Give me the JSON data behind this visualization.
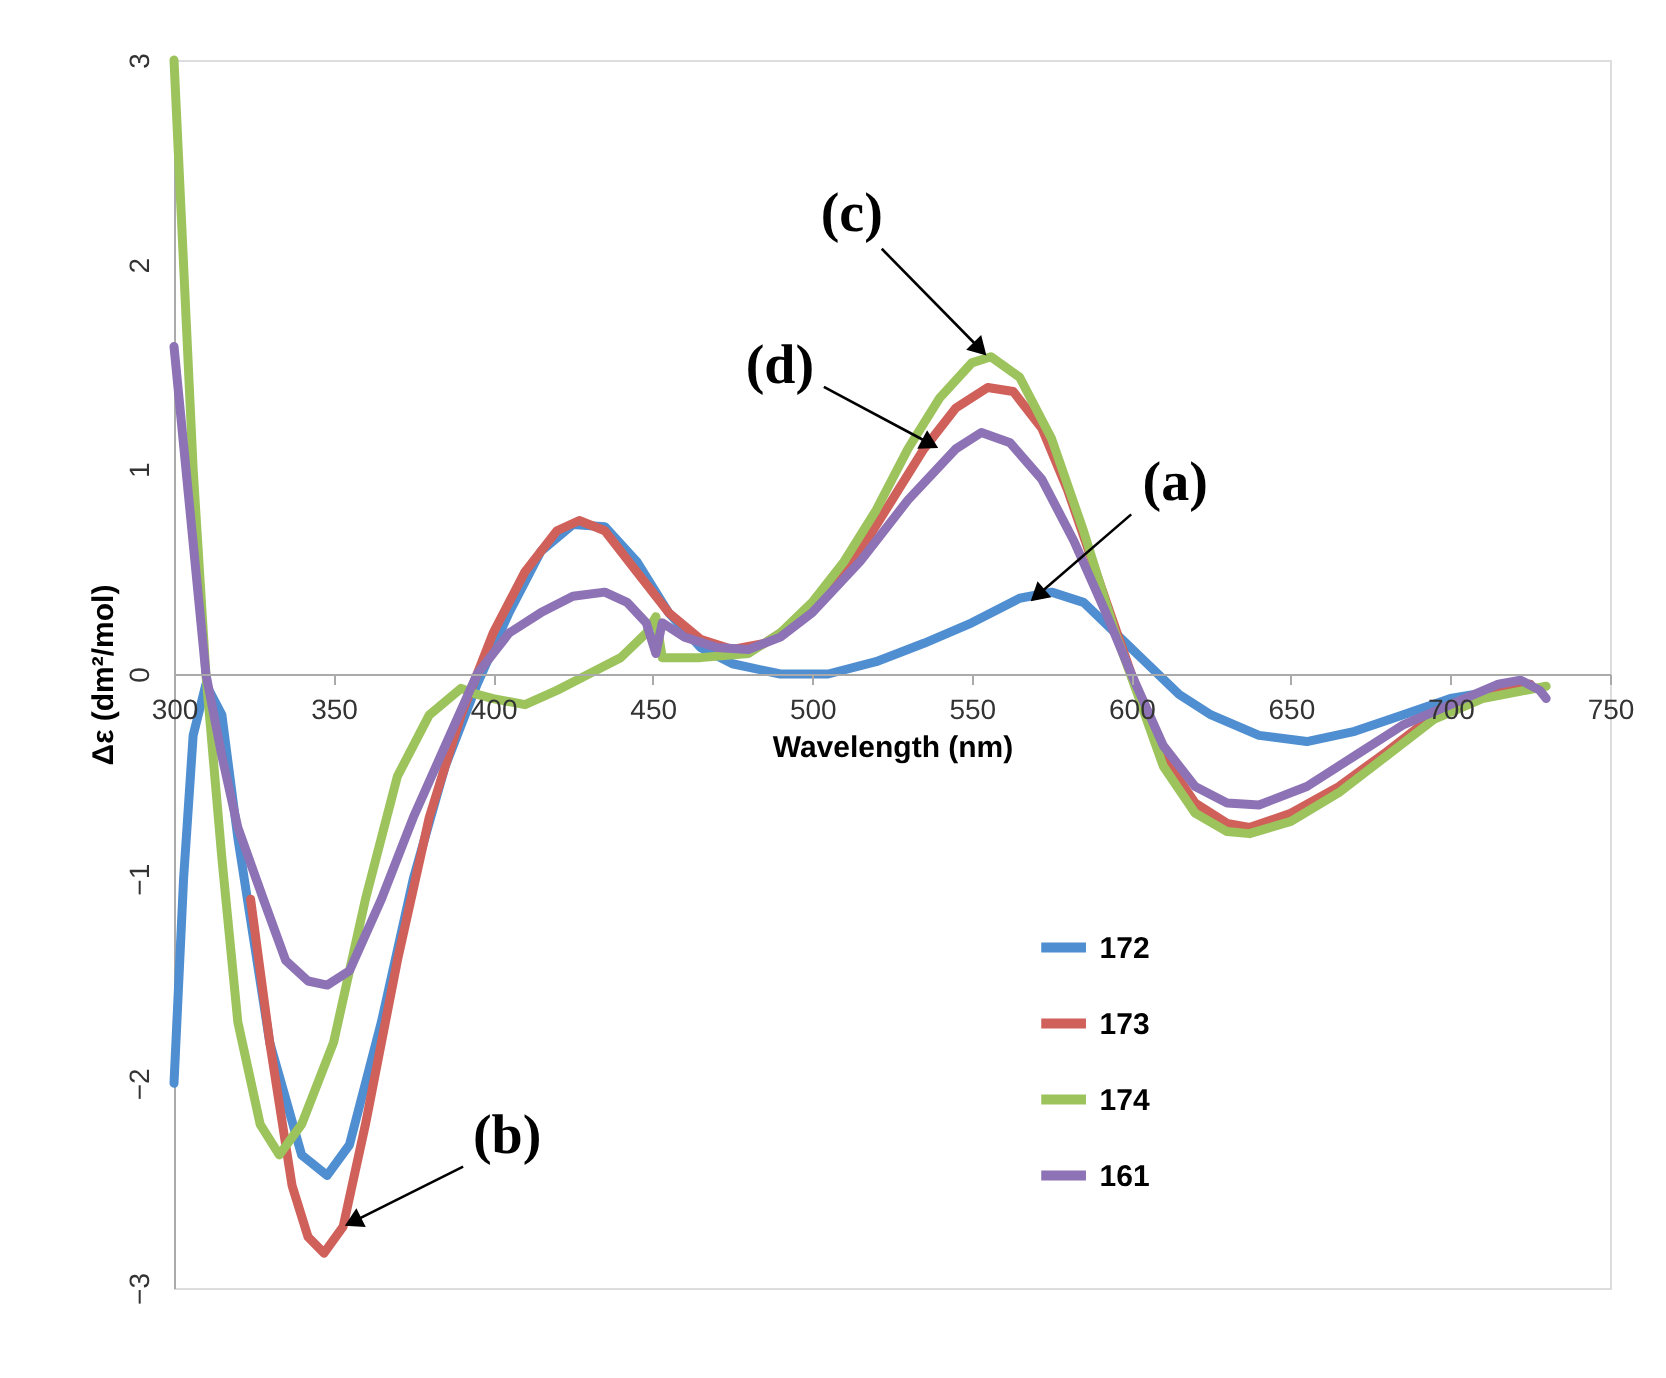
{
  "chart_data": {
    "type": "line",
    "xlabel": "Wavelength (nm)",
    "ylabel": "Δε (dm²/mol)",
    "xlim": [
      300,
      750
    ],
    "xticks": [
      300,
      350,
      400,
      450,
      500,
      550,
      600,
      650,
      700,
      750
    ],
    "ylim": [
      -3,
      3
    ],
    "yticks": [
      -3,
      -2,
      -1,
      0,
      1,
      2,
      3
    ],
    "grid": false,
    "legend": "bottom right",
    "marker": "none",
    "line_style": "solid",
    "series": [
      {
        "name": "172",
        "color": "#4f8ed0",
        "x": [
          300,
          303,
          306,
          310,
          315,
          320,
          330,
          340,
          348,
          355,
          365,
          375,
          385,
          395,
          405,
          415,
          425,
          435,
          445,
          455,
          465,
          475,
          490,
          505,
          520,
          535,
          550,
          565,
          575,
          585,
          595,
          605,
          615,
          625,
          640,
          655,
          670,
          685,
          700,
          715,
          725
        ],
        "values": [
          -2.0,
          -1.0,
          -0.3,
          -0.05,
          -0.2,
          -0.8,
          -1.8,
          -2.35,
          -2.45,
          -2.3,
          -1.7,
          -1.0,
          -0.45,
          -0.05,
          0.3,
          0.6,
          0.73,
          0.72,
          0.55,
          0.3,
          0.13,
          0.05,
          0.0,
          0.0,
          0.06,
          0.15,
          0.25,
          0.37,
          0.4,
          0.35,
          0.2,
          0.05,
          -0.1,
          -0.2,
          -0.3,
          -0.33,
          -0.28,
          -0.2,
          -0.12,
          -0.08,
          -0.05
        ]
      },
      {
        "name": "173",
        "color": "#d0605a",
        "x": [
          324,
          330,
          337,
          342,
          347,
          353,
          360,
          370,
          380,
          390,
          400,
          410,
          420,
          427,
          435,
          445,
          455,
          465,
          475,
          485,
          495,
          505,
          515,
          525,
          535,
          545,
          555,
          563,
          572,
          580,
          590,
          600,
          610,
          620,
          630,
          637,
          650,
          665,
          680,
          695,
          710,
          725
        ],
        "values": [
          -1.1,
          -1.8,
          -2.5,
          -2.75,
          -2.83,
          -2.7,
          -2.2,
          -1.4,
          -0.7,
          -0.2,
          0.2,
          0.5,
          0.7,
          0.75,
          0.7,
          0.5,
          0.3,
          0.17,
          0.12,
          0.15,
          0.25,
          0.4,
          0.6,
          0.85,
          1.1,
          1.3,
          1.4,
          1.38,
          1.2,
          0.9,
          0.45,
          0.0,
          -0.4,
          -0.63,
          -0.73,
          -0.75,
          -0.68,
          -0.55,
          -0.38,
          -0.2,
          -0.1,
          -0.05
        ]
      },
      {
        "name": "174",
        "color": "#9cc35c",
        "x": [
          300,
          303,
          306,
          310,
          315,
          320,
          327,
          333,
          340,
          350,
          360,
          370,
          380,
          390,
          395,
          400,
          410,
          420,
          430,
          440,
          448,
          451,
          453,
          465,
          480,
          490,
          500,
          510,
          520,
          530,
          540,
          550,
          556,
          565,
          575,
          585,
          595,
          602,
          610,
          620,
          630,
          637,
          650,
          665,
          680,
          695,
          710,
          730
        ],
        "values": [
          3.0,
          2.0,
          1.0,
          0.0,
          -0.9,
          -1.7,
          -2.2,
          -2.35,
          -2.2,
          -1.8,
          -1.1,
          -0.5,
          -0.2,
          -0.07,
          -0.1,
          -0.12,
          -0.15,
          -0.08,
          0.0,
          0.08,
          0.2,
          0.28,
          0.08,
          0.08,
          0.1,
          0.2,
          0.35,
          0.55,
          0.8,
          1.1,
          1.35,
          1.52,
          1.55,
          1.45,
          1.15,
          0.7,
          0.2,
          -0.1,
          -0.45,
          -0.68,
          -0.77,
          -0.78,
          -0.72,
          -0.58,
          -0.4,
          -0.22,
          -0.12,
          -0.06
        ]
      },
      {
        "name": "161",
        "color": "#8d72b5",
        "x": [
          300,
          305,
          310,
          315,
          320,
          328,
          335,
          342,
          348,
          355,
          365,
          375,
          385,
          395,
          405,
          415,
          425,
          435,
          442,
          448,
          451,
          453,
          460,
          470,
          480,
          490,
          500,
          515,
          530,
          545,
          553,
          562,
          572,
          582,
          592,
          600,
          610,
          620,
          630,
          640,
          655,
          670,
          685,
          700,
          715,
          722,
          728,
          730
        ],
        "values": [
          1.6,
          0.8,
          0.0,
          -0.4,
          -0.75,
          -1.1,
          -1.4,
          -1.5,
          -1.52,
          -1.45,
          -1.1,
          -0.7,
          -0.35,
          0.0,
          0.2,
          0.3,
          0.38,
          0.4,
          0.35,
          0.25,
          0.1,
          0.25,
          0.18,
          0.13,
          0.12,
          0.18,
          0.3,
          0.55,
          0.85,
          1.1,
          1.18,
          1.13,
          0.95,
          0.65,
          0.3,
          0.0,
          -0.35,
          -0.55,
          -0.63,
          -0.64,
          -0.55,
          -0.4,
          -0.25,
          -0.15,
          -0.05,
          -0.03,
          -0.08,
          -0.12
        ]
      }
    ],
    "annotations": [
      {
        "text": "(a)",
        "x": 568,
        "y": 0.35
      },
      {
        "text": "(b)",
        "x": 353,
        "y": -2.7
      },
      {
        "text": "(c)",
        "x": 555,
        "y": 1.55
      },
      {
        "text": "(d)",
        "x": 540,
        "y": 1.1
      }
    ]
  }
}
